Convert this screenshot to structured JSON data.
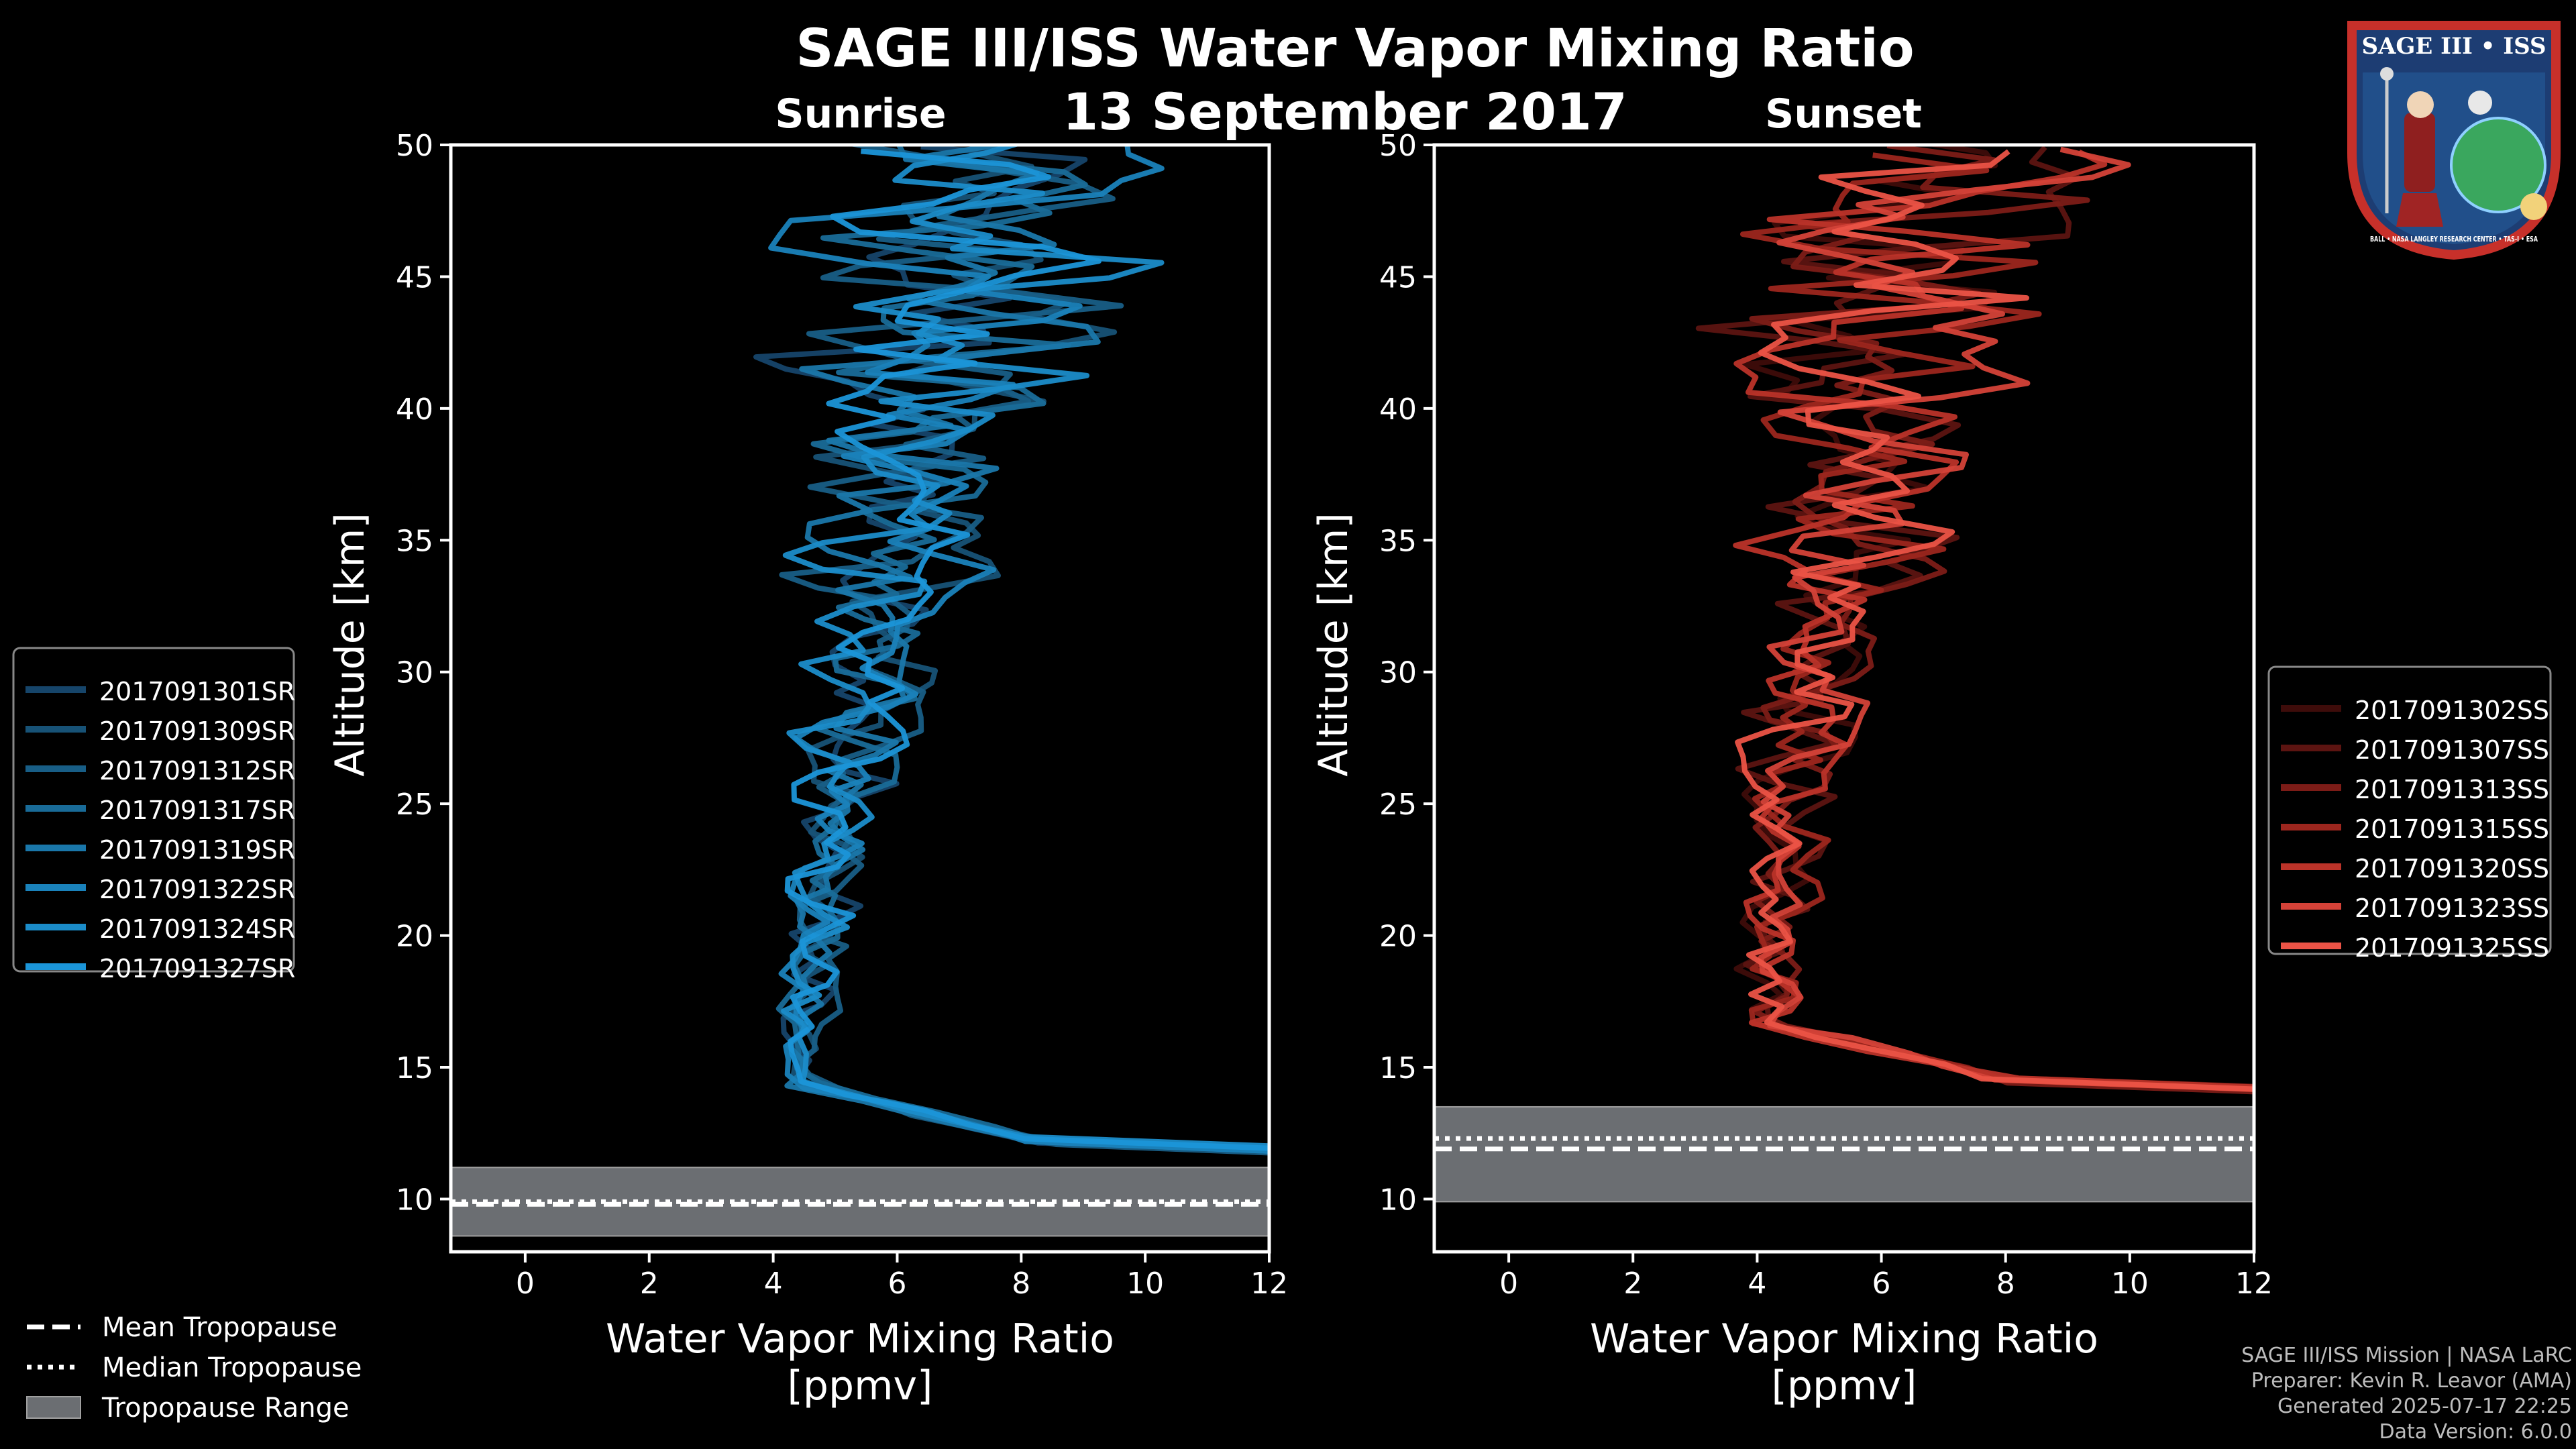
{
  "title": {
    "main": "SAGE III/ISS Water Vapor Mixing Ratio",
    "date": "13 September 2017",
    "left_panel": "Sunrise",
    "right_panel": "Sunset"
  },
  "logo": {
    "top_text": "SAGE III • ISS",
    "ring_text": "BALL • NASA LANGLEY RESEARCH CENTER • TAS-I • ESA"
  },
  "footer": {
    "line1": "SAGE III/ISS Mission | NASA LaRC",
    "line2": "Preparer: Kevin R. Leavor (AMA)",
    "line3": "Generated 2025-07-17 22:25",
    "line4": "Data Version: 6.0.0"
  },
  "tropopause_legend": [
    {
      "label": "Mean Tropopause",
      "style": "dashed"
    },
    {
      "label": "Median Tropopause",
      "style": "dotted"
    },
    {
      "label": "Tropopause Range",
      "style": "band"
    }
  ],
  "chart_data": [
    {
      "type": "line",
      "panel": "Sunrise",
      "xlabel": "Water Vapor Mixing Ratio\n[ppmv]",
      "ylabel": "Altitude [km]",
      "xlim": [
        -1.2,
        12
      ],
      "ylim": [
        8,
        50
      ],
      "xticks": [
        0,
        2,
        4,
        6,
        8,
        10,
        12
      ],
      "yticks": [
        10,
        15,
        20,
        25,
        30,
        35,
        40,
        45,
        50
      ],
      "base_color": "#1b8fd6",
      "legend_position": "outside-left",
      "series": [
        {
          "name": "2017091301SR",
          "color": "#16456a",
          "seed": 11
        },
        {
          "name": "2017091309SR",
          "color": "#175276",
          "seed": 23
        },
        {
          "name": "2017091312SR",
          "color": "#185e86",
          "seed": 37
        },
        {
          "name": "2017091317SR",
          "color": "#196b98",
          "seed": 41
        },
        {
          "name": "2017091319SR",
          "color": "#1a77aa",
          "seed": 53
        },
        {
          "name": "2017091322SR",
          "color": "#1a82bb",
          "seed": 67
        },
        {
          "name": "2017091324SR",
          "color": "#1b8cc9",
          "seed": 71
        },
        {
          "name": "2017091327SR",
          "color": "#1b95d8",
          "seed": 83
        }
      ],
      "profile_shape": {
        "tropopause_top_km": 11.2,
        "surface_value_ppmv": 12,
        "min_value_ppmv": 4.5,
        "min_altitude_km": 17,
        "mid_value_ppmv": 5.5,
        "upper_value_ppmv": 7.5,
        "noise_growth": "increases with altitude"
      },
      "tropopause": {
        "mean_km": 9.8,
        "median_km": 9.9,
        "range_km": [
          8.6,
          11.2
        ]
      }
    },
    {
      "type": "line",
      "panel": "Sunset",
      "xlabel": "Water Vapor Mixing Ratio\n[ppmv]",
      "ylabel": "Altitude [km]",
      "xlim": [
        -1.2,
        12
      ],
      "ylim": [
        8,
        50
      ],
      "xticks": [
        0,
        2,
        4,
        6,
        8,
        10,
        12
      ],
      "yticks": [
        10,
        15,
        20,
        25,
        30,
        35,
        40,
        45,
        50
      ],
      "base_color": "#e8544a",
      "legend_position": "outside-right",
      "series": [
        {
          "name": "2017091302SS",
          "color": "#3e0c0a",
          "seed": 13
        },
        {
          "name": "2017091307SS",
          "color": "#5c1411",
          "seed": 29
        },
        {
          "name": "2017091313SS",
          "color": "#7c1c17",
          "seed": 31
        },
        {
          "name": "2017091315SS",
          "color": "#9c261e",
          "seed": 47
        },
        {
          "name": "2017091320SS",
          "color": "#bb3329",
          "seed": 59
        },
        {
          "name": "2017091323SS",
          "color": "#d44238",
          "seed": 61
        },
        {
          "name": "2017091325SS",
          "color": "#eb5346",
          "seed": 79
        }
      ],
      "profile_shape": {
        "tropopause_top_km": 13.5,
        "surface_value_ppmv": 12,
        "min_value_ppmv": 4.2,
        "min_altitude_km": 17,
        "mid_value_ppmv": 4.8,
        "upper_value_ppmv": 7.0,
        "noise_growth": "increases with altitude"
      },
      "tropopause": {
        "mean_km": 11.9,
        "median_km": 12.3,
        "range_km": [
          9.9,
          13.5
        ]
      }
    }
  ]
}
